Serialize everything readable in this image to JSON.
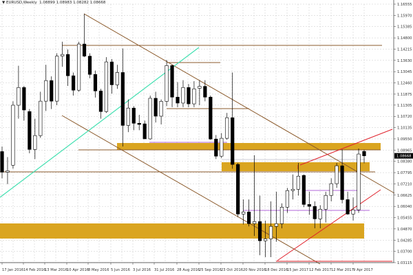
{
  "header": {
    "marker": "▼",
    "symbol": "EURUSD,Weekly",
    "open": "1.08899",
    "high": "1.08983",
    "low": "1.08282",
    "close": "1.08668"
  },
  "chart_data": {
    "type": "candlestick",
    "symbol": "EURUSD",
    "timeframe": "Weekly",
    "ylim": [
      1.03115,
      1.16555
    ],
    "y_ticks": [
      "1.16555",
      "1.15970",
      "1.15385",
      "1.14800",
      "1.14215",
      "1.13630",
      "1.13045",
      "1.12460",
      "1.11875",
      "1.11305",
      "1.10720",
      "1.10135",
      "1.09550",
      "1.08965",
      "1.08380",
      "1.07795",
      "1.07210",
      "1.06625",
      "1.06040",
      "1.05455",
      "1.04870",
      "1.04285",
      "1.03700",
      "1.03115"
    ],
    "current_price": "1.08668",
    "x_ticks": [
      "17 Jan 2016",
      "14 Feb 2016",
      "13 Mar 2016",
      "10 Apr 2016",
      "8 May 2016",
      "5 Jun 2016",
      "3 Jul 2016",
      "31 Jul 2016",
      "28 Aug 2016",
      "25 Sep 2016",
      "23 Oct 2016",
      "20 Nov 2016",
      "18 Dec 2016",
      "15 Jan 2017",
      "12 Feb 2017",
      "12 Mar 2017",
      "9 Apr 2017"
    ],
    "grid": true,
    "colors": {
      "bull": "#ffffff",
      "bear": "#000000",
      "zone": "#daa520",
      "trend": "#8b5a2b",
      "cyan": "#40e0b0",
      "red": "#e0202a",
      "purple": "#9932cc"
    },
    "ohlc": [
      [
        1.0889,
        1.0915,
        1.075,
        1.0782
      ],
      [
        1.0782,
        1.086,
        1.072,
        1.0789
      ],
      [
        1.0818,
        1.115,
        1.08,
        1.113
      ],
      [
        1.113,
        1.1335,
        1.106,
        1.1222
      ],
      [
        1.1222,
        1.123,
        1.105,
        1.1105
      ],
      [
        1.1097,
        1.111,
        1.088,
        1.09
      ],
      [
        1.09,
        1.106,
        1.085,
        1.0972
      ],
      [
        1.0972,
        1.12,
        1.096,
        1.1151
      ],
      [
        1.1151,
        1.134,
        1.11,
        1.1258
      ],
      [
        1.1258,
        1.128,
        1.111,
        1.1151
      ],
      [
        1.1151,
        1.14,
        1.113,
        1.1385
      ],
      [
        1.1385,
        1.146,
        1.133,
        1.1394
      ],
      [
        1.1394,
        1.142,
        1.123,
        1.1283
      ],
      [
        1.1283,
        1.13,
        1.118,
        1.1208
      ],
      [
        1.1208,
        1.146,
        1.12,
        1.1448
      ],
      [
        1.1448,
        1.1605,
        1.138,
        1.1385
      ],
      [
        1.1385,
        1.14,
        1.127,
        1.129
      ],
      [
        1.129,
        1.131,
        1.117,
        1.1204
      ],
      [
        1.1204,
        1.1215,
        1.106,
        1.1097
      ],
      [
        1.1097,
        1.138,
        1.109,
        1.1355
      ],
      [
        1.1355,
        1.137,
        1.119,
        1.1236
      ],
      [
        1.1236,
        1.134,
        1.1215,
        1.13
      ],
      [
        1.13,
        1.1425,
        1.0915,
        1.1025
      ],
      [
        1.1025,
        1.116,
        1.099,
        1.1115
      ],
      [
        1.1115,
        1.1125,
        1.1,
        1.1036
      ],
      [
        1.1036,
        1.108,
        1.1,
        1.103
      ],
      [
        1.1033,
        1.105,
        1.0955,
        1.0955
      ],
      [
        1.0955,
        1.118,
        1.095,
        1.1166
      ],
      [
        1.1166,
        1.12,
        1.104,
        1.1073
      ],
      [
        1.1073,
        1.116,
        1.103,
        1.115
      ],
      [
        1.115,
        1.1365,
        1.1125,
        1.1336
      ],
      [
        1.1336,
        1.134,
        1.112,
        1.1172
      ],
      [
        1.1172,
        1.125,
        1.112,
        1.1141
      ],
      [
        1.1141,
        1.126,
        1.112,
        1.1222
      ],
      [
        1.1222,
        1.124,
        1.112,
        1.1137
      ],
      [
        1.1137,
        1.1255,
        1.112,
        1.1215
      ],
      [
        1.1218,
        1.126,
        1.113,
        1.1228
      ],
      [
        1.1228,
        1.126,
        1.115,
        1.1172
      ],
      [
        1.1172,
        1.118,
        1.095,
        1.0954
      ],
      [
        1.0954,
        1.0975,
        1.085,
        1.0865
      ],
      [
        1.0865,
        1.0985,
        1.0855,
        1.0958
      ],
      [
        1.0958,
        1.109,
        1.095,
        1.1065
      ],
      [
        1.1065,
        1.13,
        1.08,
        1.0822
      ],
      [
        1.0822,
        1.083,
        1.055,
        1.0564
      ],
      [
        1.0564,
        1.064,
        1.051,
        1.0575
      ],
      [
        1.0575,
        1.064,
        1.05,
        1.0514
      ],
      [
        1.0514,
        1.087,
        1.045,
        1.0525
      ],
      [
        1.0525,
        1.066,
        1.035,
        1.0425
      ],
      [
        1.0425,
        1.053,
        1.034,
        1.0435
      ],
      [
        1.0435,
        1.063,
        1.034,
        1.05
      ],
      [
        1.05,
        1.068,
        1.042,
        1.0514
      ],
      [
        1.0514,
        1.062,
        1.049,
        1.06
      ],
      [
        1.06,
        1.07,
        1.057,
        1.0686
      ],
      [
        1.0686,
        1.077,
        1.064,
        1.0693
      ],
      [
        1.0693,
        1.083,
        1.066,
        1.0761
      ],
      [
        1.0765,
        1.077,
        1.06,
        1.0614
      ],
      [
        1.0614,
        1.068,
        1.056,
        1.0604
      ],
      [
        1.0604,
        1.063,
        1.049,
        1.0539
      ],
      [
        1.0539,
        1.061,
        1.049,
        1.0589
      ],
      [
        1.0589,
        1.068,
        1.052,
        1.0661
      ],
      [
        1.0661,
        1.075,
        1.063,
        1.0722
      ],
      [
        1.0722,
        1.083,
        1.07,
        1.0815
      ],
      [
        1.0815,
        1.09,
        1.062,
        1.0639
      ],
      [
        1.0639,
        1.068,
        1.056,
        1.0564
      ],
      [
        1.0564,
        1.065,
        1.053,
        1.0586
      ],
      [
        1.0586,
        1.0905,
        1.057,
        1.0876
      ],
      [
        1.08899,
        1.08983,
        1.08282,
        1.08668
      ]
    ]
  }
}
